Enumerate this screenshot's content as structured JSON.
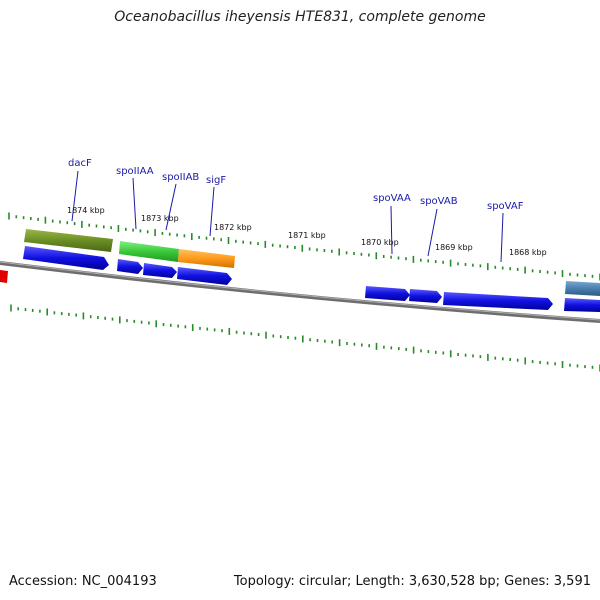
{
  "title": "Oceanobacillus iheyensis HTE831, complete genome",
  "footer": {
    "accession": "Accession: NC_004193",
    "summary": "Topology: circular; Length: 3,630,528 bp; Genes: 3,591"
  },
  "scale_labels": [
    "1874 kbp",
    "1873 kbp",
    "1872 kbp",
    "1871 kbp",
    "1870 kbp",
    "1869 kbp",
    "1868 kbp"
  ],
  "gene_labels": [
    "dacF",
    "spoIIAA",
    "spoIIAB",
    "sigF",
    "spoVAA",
    "spoVAB",
    "spoVAF"
  ],
  "colors": {
    "backbone": "#8a8a8a",
    "ticks": "#2a8a2a",
    "cds": "#1010e0",
    "dacF_feature": "#6b8e23",
    "spoIIAA_feature": "#3cc83c",
    "sigF_feature": "#ff9a1a",
    "edge_feature": "#4a7fb0",
    "edge_marker": "#e00000"
  }
}
